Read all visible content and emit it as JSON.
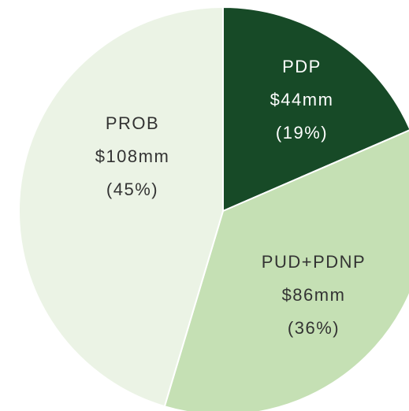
{
  "chart_data": {
    "type": "pie",
    "categories": [
      "PDP",
      "PUD+PDNP",
      "PROB"
    ],
    "values": [
      44,
      86,
      108
    ],
    "value_labels": [
      "$44mm",
      "$86mm",
      "$108mm"
    ],
    "percents": [
      19,
      36,
      45
    ],
    "percent_labels": [
      "(19%)",
      "(36%)",
      "(45%)"
    ],
    "colors": [
      "#174a27",
      "#c5e0b4",
      "#ebf3e5"
    ],
    "label_colors": [
      "#ffffff",
      "#333333",
      "#333333"
    ]
  }
}
